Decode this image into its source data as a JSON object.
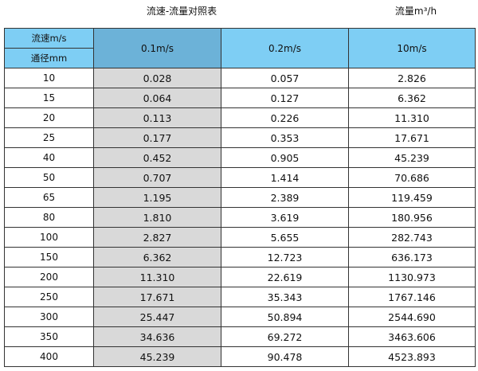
{
  "title": "流速-流量对照表",
  "unit_label": "流量m³/h",
  "header": {
    "velocity_label": "流速m/s",
    "diameter_label": "通径mm",
    "columns": [
      "0.1m/s",
      "0.2m/s",
      "10m/s"
    ]
  },
  "rows": [
    [
      "10",
      "0.028",
      "0.057",
      "2.826"
    ],
    [
      "15",
      "0.064",
      "0.127",
      "6.362"
    ],
    [
      "20",
      "0.113",
      "0.226",
      "11.310"
    ],
    [
      "25",
      "0.177",
      "0.353",
      "17.671"
    ],
    [
      "40",
      "0.452",
      "0.905",
      "45.239"
    ],
    [
      "50",
      "0.707",
      "1.414",
      "70.686"
    ],
    [
      "65",
      "1.195",
      "2.389",
      "119.459"
    ],
    [
      "80",
      "1.810",
      "3.619",
      "180.956"
    ],
    [
      "100",
      "2.827",
      "5.655",
      "282.743"
    ],
    [
      "150",
      "6.362",
      "12.723",
      "636.173"
    ],
    [
      "200",
      "11.310",
      "22.619",
      "1130.973"
    ],
    [
      "250",
      "17.671",
      "35.343",
      "1767.146"
    ],
    [
      "300",
      "25.447",
      "50.894",
      "2544.690"
    ],
    [
      "350",
      "34.636",
      "69.272",
      "3463.606"
    ],
    [
      "400",
      "45.239",
      "90.478",
      "4523.893"
    ]
  ],
  "colors": {
    "header": "#7ecef4",
    "header_highlight": "#6cb2d8",
    "column_highlight": "#d9d9d9"
  }
}
